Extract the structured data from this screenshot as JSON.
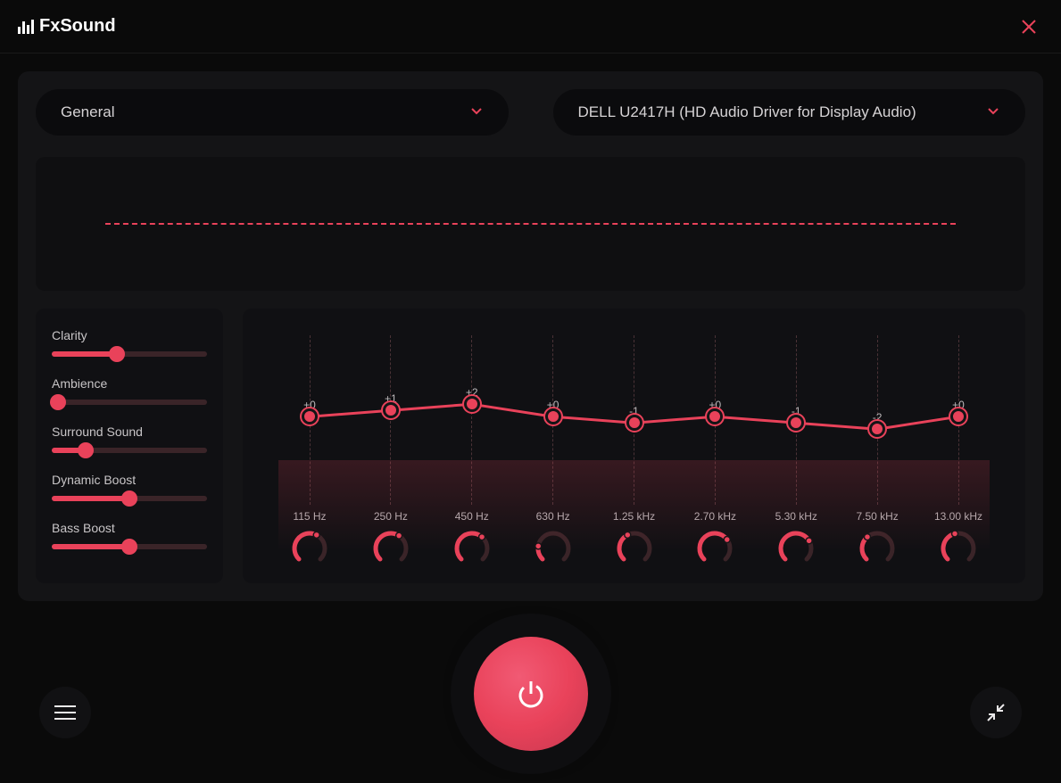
{
  "app_name": "FxSound",
  "colors": {
    "accent": "#e9425a",
    "bg": "#0a0a0a",
    "panel": "#141416",
    "sub_panel": "#101013",
    "text": "#d0cdcf"
  },
  "dropdowns": {
    "preset": {
      "label": "General"
    },
    "device": {
      "label": "DELL U2417H (HD Audio Driver for Display Audio)"
    }
  },
  "sliders": [
    {
      "label": "Clarity",
      "value": 0.42
    },
    {
      "label": "Ambience",
      "value": 0.04
    },
    {
      "label": "Surround Sound",
      "value": 0.22
    },
    {
      "label": "Dynamic Boost",
      "value": 0.5
    },
    {
      "label": "Bass Boost",
      "value": 0.5
    }
  ],
  "eq": {
    "min_db": -12,
    "max_db": 12,
    "bands": [
      {
        "freq": "115 Hz",
        "db": 0,
        "label": "+0",
        "knob": 0.6
      },
      {
        "freq": "250 Hz",
        "db": 1,
        "label": "+1",
        "knob": 0.62
      },
      {
        "freq": "450 Hz",
        "db": 2,
        "label": "+2",
        "knob": 0.65
      },
      {
        "freq": "630 Hz",
        "db": 0,
        "label": "+0",
        "knob": 0.2
      },
      {
        "freq": "1.25 kHz",
        "db": -1,
        "label": "-1",
        "knob": 0.4
      },
      {
        "freq": "2.70 kHz",
        "db": 0,
        "label": "+0",
        "knob": 0.7
      },
      {
        "freq": "5.30 kHz",
        "db": -1,
        "label": "-1",
        "knob": 0.72
      },
      {
        "freq": "7.50 kHz",
        "db": -2,
        "label": "-2",
        "knob": 0.35
      },
      {
        "freq": "13.00 kHz",
        "db": 0,
        "label": "+0",
        "knob": 0.45
      }
    ]
  }
}
